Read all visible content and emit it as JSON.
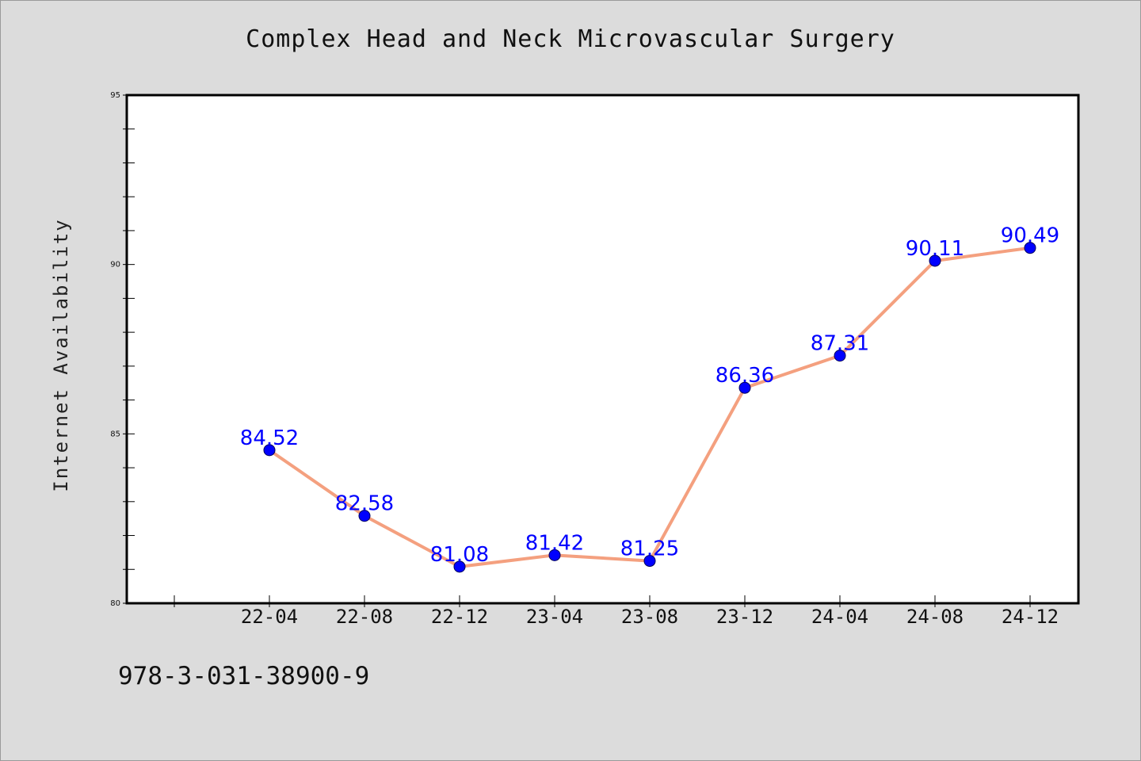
{
  "chart_data": {
    "type": "line",
    "title": "Complex Head and Neck Microvascular Surgery",
    "xlabel": "",
    "ylabel": "Internet Availability",
    "categories": [
      "22-04",
      "22-08",
      "22-12",
      "23-04",
      "23-08",
      "23-12",
      "24-04",
      "24-08",
      "24-12"
    ],
    "series": [
      {
        "values": [
          84.52,
          82.58,
          81.08,
          81.42,
          81.25,
          86.36,
          87.31,
          90.11,
          90.49
        ]
      }
    ],
    "data_labels": [
      "84.52",
      "82.58",
      "81.08",
      "81.42",
      "81.25",
      "86.36",
      "87.31",
      "90.11",
      "90.49"
    ],
    "ylim": [
      80,
      95
    ],
    "yticks": [
      "80",
      "85",
      "90",
      "95"
    ],
    "grid": false,
    "line_color": "#f4a07f",
    "marker_color": "#0000ff",
    "label_color": "#0000ff"
  },
  "footer": {
    "code": "978-3-031-38900-9"
  }
}
